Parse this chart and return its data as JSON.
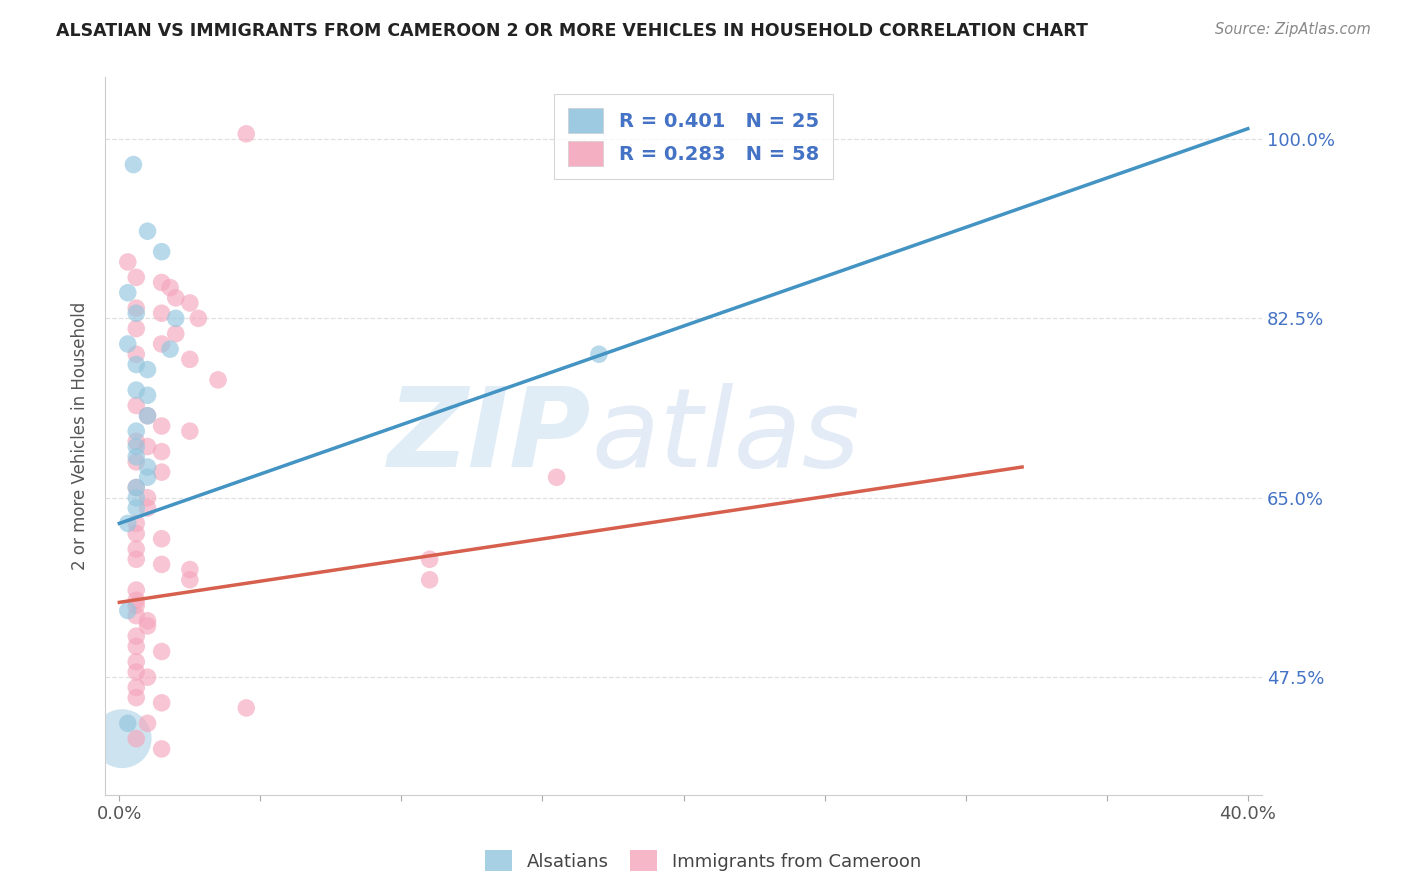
{
  "title": "ALSATIAN VS IMMIGRANTS FROM CAMEROON 2 OR MORE VEHICLES IN HOUSEHOLD CORRELATION CHART",
  "source": "Source: ZipAtlas.com",
  "ylabel": "2 or more Vehicles in Household",
  "background_color": "#ffffff",
  "grid_color": "#e0e0e0",
  "watermark_zip": "ZIP",
  "watermark_atlas": "atlas",
  "legend_R1": "R = 0.401",
  "legend_N1": "N = 25",
  "legend_R2": "R = 0.283",
  "legend_N2": "N = 58",
  "blue_color": "#92c5de",
  "pink_color": "#f4a6bc",
  "blue_line_color": "#4393c3",
  "pink_line_color": "#d6604d",
  "blue_scatter": [
    [
      0.005,
      0.975
    ],
    [
      0.01,
      0.91
    ],
    [
      0.015,
      0.89
    ],
    [
      0.003,
      0.85
    ],
    [
      0.006,
      0.83
    ],
    [
      0.02,
      0.825
    ],
    [
      0.003,
      0.8
    ],
    [
      0.018,
      0.795
    ],
    [
      0.17,
      0.79
    ],
    [
      0.006,
      0.78
    ],
    [
      0.01,
      0.775
    ],
    [
      0.006,
      0.755
    ],
    [
      0.01,
      0.75
    ],
    [
      0.01,
      0.73
    ],
    [
      0.006,
      0.715
    ],
    [
      0.006,
      0.7
    ],
    [
      0.006,
      0.69
    ],
    [
      0.01,
      0.68
    ],
    [
      0.01,
      0.67
    ],
    [
      0.006,
      0.66
    ],
    [
      0.006,
      0.65
    ],
    [
      0.006,
      0.64
    ],
    [
      0.003,
      0.625
    ],
    [
      0.003,
      0.54
    ],
    [
      0.003,
      0.43
    ]
  ],
  "pink_scatter": [
    [
      0.045,
      1.005
    ],
    [
      0.003,
      0.88
    ],
    [
      0.006,
      0.865
    ],
    [
      0.015,
      0.86
    ],
    [
      0.018,
      0.855
    ],
    [
      0.02,
      0.845
    ],
    [
      0.025,
      0.84
    ],
    [
      0.006,
      0.835
    ],
    [
      0.015,
      0.83
    ],
    [
      0.028,
      0.825
    ],
    [
      0.006,
      0.815
    ],
    [
      0.02,
      0.81
    ],
    [
      0.015,
      0.8
    ],
    [
      0.006,
      0.79
    ],
    [
      0.025,
      0.785
    ],
    [
      0.035,
      0.765
    ],
    [
      0.006,
      0.74
    ],
    [
      0.01,
      0.73
    ],
    [
      0.015,
      0.72
    ],
    [
      0.025,
      0.715
    ],
    [
      0.006,
      0.705
    ],
    [
      0.01,
      0.7
    ],
    [
      0.015,
      0.695
    ],
    [
      0.006,
      0.685
    ],
    [
      0.015,
      0.675
    ],
    [
      0.155,
      0.67
    ],
    [
      0.006,
      0.66
    ],
    [
      0.01,
      0.65
    ],
    [
      0.01,
      0.64
    ],
    [
      0.006,
      0.625
    ],
    [
      0.006,
      0.615
    ],
    [
      0.015,
      0.61
    ],
    [
      0.006,
      0.6
    ],
    [
      0.006,
      0.59
    ],
    [
      0.015,
      0.585
    ],
    [
      0.025,
      0.58
    ],
    [
      0.025,
      0.57
    ],
    [
      0.006,
      0.56
    ],
    [
      0.006,
      0.55
    ],
    [
      0.006,
      0.545
    ],
    [
      0.006,
      0.535
    ],
    [
      0.01,
      0.53
    ],
    [
      0.01,
      0.525
    ],
    [
      0.006,
      0.515
    ],
    [
      0.006,
      0.505
    ],
    [
      0.015,
      0.5
    ],
    [
      0.006,
      0.49
    ],
    [
      0.006,
      0.48
    ],
    [
      0.01,
      0.475
    ],
    [
      0.006,
      0.465
    ],
    [
      0.006,
      0.455
    ],
    [
      0.015,
      0.45
    ],
    [
      0.045,
      0.445
    ],
    [
      0.01,
      0.43
    ],
    [
      0.006,
      0.415
    ],
    [
      0.015,
      0.405
    ],
    [
      0.11,
      0.59
    ],
    [
      0.11,
      0.57
    ]
  ],
  "blue_line_x": [
    0.0,
    0.4
  ],
  "blue_line_y": [
    0.625,
    1.01
  ],
  "pink_line_x": [
    0.0,
    0.32
  ],
  "pink_line_y": [
    0.548,
    0.68
  ],
  "dashed_line_x": [
    0.0,
    0.4
  ],
  "dashed_line_y": [
    0.625,
    1.01
  ],
  "xlim": [
    -0.005,
    0.405
  ],
  "ylim": [
    0.36,
    1.06
  ],
  "x_ticks": [
    0.0,
    0.05,
    0.1,
    0.15,
    0.2,
    0.25,
    0.3,
    0.35,
    0.4
  ],
  "x_tick_labels": [
    "0.0%",
    "",
    "",
    "",
    "",
    "",
    "",
    "",
    "40.0%"
  ],
  "y_ticks": [
    0.475,
    0.65,
    0.825,
    1.0
  ],
  "y_tick_labels": [
    "47.5%",
    "65.0%",
    "82.5%",
    "100.0%"
  ]
}
